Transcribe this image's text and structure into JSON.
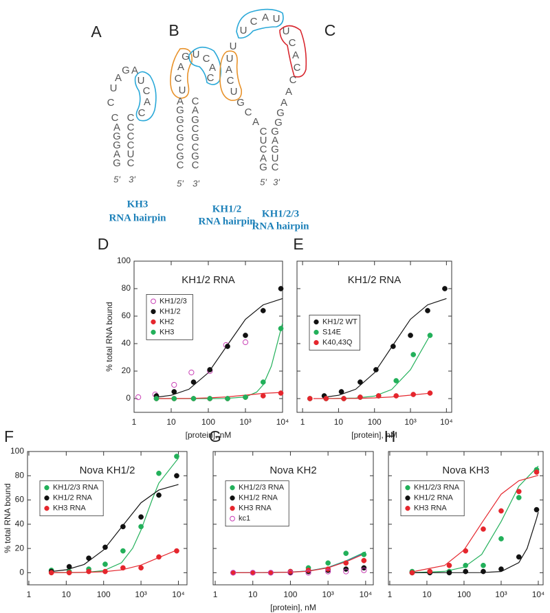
{
  "diagrams": [
    {
      "label": "A",
      "bases": [
        "G",
        "A",
        "G",
        "G",
        "A",
        "C",
        "C",
        "U",
        "A",
        "G",
        "A",
        "U",
        "C",
        "A",
        "C",
        "C",
        "C",
        "C",
        "C",
        "U",
        "C"
      ],
      "ends": [
        "5'",
        "3'"
      ],
      "caption": [
        "KH3",
        "RNA hairpin"
      ]
    },
    {
      "label": "B",
      "bases": [
        "C",
        "G",
        "C",
        "G",
        "C",
        "G",
        "G",
        "A",
        "U",
        "C",
        "A",
        "G",
        "U",
        "C",
        "A",
        "C",
        "C",
        "A",
        "G",
        "C",
        "G",
        "C",
        "G",
        "C"
      ],
      "ends": [
        "5'",
        "3'"
      ],
      "caption": [
        "KH1/2",
        "RNA hairpin"
      ]
    },
    {
      "label": "C",
      "bases": [
        "G",
        "A",
        "C",
        "U",
        "C",
        "A",
        "C",
        "G",
        "U",
        "C",
        "A",
        "U",
        "U",
        "U",
        "C",
        "A",
        "U",
        "U",
        "C",
        "A",
        "C",
        "C",
        "A",
        "A",
        "G",
        "G",
        "G",
        "A",
        "G",
        "U",
        "C"
      ],
      "ends": [
        "5'",
        "3'"
      ],
      "caption": [
        "KH1/2/3",
        "RNA hairpin"
      ]
    }
  ],
  "chart_data": [
    {
      "panel": "D",
      "type": "scatter",
      "title": "KH1/2 RNA",
      "ylabel": "% total RNA bound",
      "xlabel": "[protein], nM",
      "xscale": "log",
      "xlim": [
        1,
        10000
      ],
      "ylim": [
        -10,
        100
      ],
      "xticks": [
        1,
        10,
        100,
        {
          "value": 1000,
          "label": "10³"
        },
        {
          "value": 10000,
          "label": "10⁴"
        }
      ],
      "yticks": [
        0,
        20,
        40,
        60,
        80,
        100
      ],
      "ytick_labels": true,
      "legend": "upper left",
      "fits": [
        {
          "color": "#111111",
          "x": [
            4,
            10,
            30,
            100,
            300,
            1000,
            3000,
            10000
          ],
          "values": [
            1,
            2.4,
            6.8,
            18.8,
            37.5,
            57.7,
            68.2,
            72.8
          ]
        },
        {
          "color": "#22b05a",
          "x": [
            4,
            100,
            300,
            1000,
            2000,
            3000,
            5000,
            10000
          ],
          "values": [
            0,
            0,
            0.1,
            1.2,
            4.7,
            10,
            23.6,
            55
          ]
        },
        {
          "color": "#e5262d",
          "x": [
            4,
            30,
            100,
            300,
            1000,
            3000,
            10000
          ],
          "values": [
            0,
            0.1,
            0.5,
            1.2,
            2.5,
            3.8,
            4.5
          ]
        }
      ],
      "series": [
        {
          "name": "KH1/2/3",
          "color": "#c83cb4",
          "marker": "open",
          "x": [
            1.3,
            3.7,
            12,
            35,
            110,
            300,
            1000
          ],
          "values": [
            1,
            3,
            10,
            19,
            20,
            39,
            41
          ]
        },
        {
          "name": "KH1/2",
          "color": "#111111",
          "marker": "filled",
          "x": [
            4,
            12,
            40,
            110,
            330,
            1000,
            3000,
            9000
          ],
          "values": [
            2,
            5,
            12,
            21,
            38,
            46,
            64,
            80
          ]
        },
        {
          "name": "KH2",
          "color": "#e5262d",
          "marker": "filled",
          "x": [
            4,
            12,
            40,
            110,
            330,
            1000,
            3000,
            9000
          ],
          "values": [
            0,
            0,
            0,
            0,
            0,
            1,
            2,
            4
          ]
        },
        {
          "name": "KH3",
          "color": "#22b05a",
          "marker": "filled",
          "x": [
            4,
            12,
            40,
            110,
            330,
            1000,
            3000,
            9000
          ],
          "values": [
            0,
            0,
            0,
            0,
            0,
            1,
            12,
            51
          ]
        }
      ]
    },
    {
      "panel": "E",
      "type": "scatter",
      "title": "KH1/2 RNA",
      "xlabel": "[protein], nM",
      "xscale": "log",
      "xlim": [
        0.7,
        14000
      ],
      "ylim": [
        -10,
        100
      ],
      "xticks": [
        1,
        10,
        100,
        {
          "value": 1000,
          "label": "10³"
        },
        {
          "value": 10000,
          "label": "10⁴"
        }
      ],
      "yticks": [
        0,
        20,
        40,
        60,
        80,
        100
      ],
      "ytick_labels": false,
      "legend": "center left",
      "fits": [
        {
          "color": "#111111",
          "x": [
            4,
            10,
            30,
            100,
            300,
            1000,
            3000,
            10000
          ],
          "values": [
            1,
            2.4,
            6.8,
            18.8,
            37.5,
            57.7,
            68.2,
            72.8
          ]
        },
        {
          "color": "#22b05a",
          "x": [
            4,
            30,
            100,
            300,
            1000,
            3500
          ],
          "values": [
            0,
            0.4,
            1.8,
            6.6,
            21,
            46
          ]
        },
        {
          "color": "#e5262d",
          "x": [
            2,
            30,
            100,
            300,
            1000,
            3500
          ],
          "values": [
            0,
            0.1,
            0.5,
            1.2,
            2.5,
            3.9
          ]
        }
      ],
      "series": [
        {
          "name": "KH1/2 WT",
          "color": "#111111",
          "marker": "filled",
          "x": [
            4,
            12,
            40,
            110,
            330,
            1000,
            3000,
            9000
          ],
          "values": [
            2,
            5,
            12,
            21,
            38,
            46,
            64,
            80
          ]
        },
        {
          "name": "S14E",
          "color": "#22b05a",
          "marker": "filled",
          "x": [
            1.6,
            4.5,
            14,
            40,
            130,
            400,
            1200,
            3500
          ],
          "values": [
            0,
            0,
            0,
            1,
            2,
            13,
            32,
            46
          ]
        },
        {
          "name": "K40,43Q",
          "color": "#e5262d",
          "marker": "filled",
          "x": [
            1.6,
            4.5,
            14,
            40,
            130,
            400,
            1200,
            3500
          ],
          "values": [
            0,
            0,
            0,
            1,
            2,
            2,
            3,
            4
          ]
        }
      ]
    },
    {
      "panel": "F",
      "type": "scatter",
      "title": "Nova KH1/2",
      "ylabel": "% total RNA bound",
      "xscale": "log",
      "xlim": [
        0.92,
        17000
      ],
      "ylim": [
        -10,
        100
      ],
      "xticks": [
        1,
        10,
        100,
        {
          "value": 1000,
          "label": "10³"
        },
        {
          "value": 10000,
          "label": "10⁴"
        }
      ],
      "yticks": [
        0,
        20,
        40,
        60,
        80,
        100
      ],
      "ytick_labels": true,
      "legend": "upper left",
      "fits": [
        {
          "color": "#22b05a",
          "x": [
            4,
            30,
            100,
            300,
            600,
            1000,
            2000,
            3000,
            10000
          ],
          "values": [
            0,
            0.2,
            1.7,
            8.2,
            20.2,
            35.2,
            60.6,
            73.9,
            94.5
          ]
        },
        {
          "color": "#111111",
          "x": [
            4,
            10,
            30,
            100,
            300,
            1000,
            3000,
            10000
          ],
          "values": [
            1,
            2.4,
            6.8,
            18.8,
            37.5,
            57.7,
            68.2,
            72.8
          ]
        },
        {
          "color": "#e5262d",
          "x": [
            4,
            30,
            100,
            300,
            1000,
            3000,
            10000
          ],
          "values": [
            0,
            0.25,
            0.8,
            2.3,
            6.3,
            12.5,
            19.2
          ]
        }
      ],
      "series": [
        {
          "name": "KH1/2/3 RNA",
          "color": "#22b05a",
          "marker": "filled",
          "x": [
            4,
            12,
            40,
            110,
            330,
            1000,
            3000,
            9000
          ],
          "values": [
            2,
            1,
            3,
            7,
            18,
            38,
            82,
            96
          ]
        },
        {
          "name": "KH1/2 RNA",
          "color": "#111111",
          "marker": "filled",
          "x": [
            4,
            12,
            40,
            110,
            330,
            1000,
            3000,
            9000
          ],
          "values": [
            1,
            5,
            12,
            21,
            38,
            46,
            64,
            80
          ]
        },
        {
          "name": "KH3 RNA",
          "color": "#e5262d",
          "marker": "filled",
          "x": [
            4,
            12,
            40,
            110,
            330,
            1000,
            3000,
            9000
          ],
          "values": [
            0,
            0,
            1,
            1,
            4,
            4,
            13,
            18
          ]
        }
      ]
    },
    {
      "panel": "G",
      "type": "scatter",
      "title": "Nova KH2",
      "xlabel": "[protein], nM",
      "xscale": "log",
      "xlim": [
        0.88,
        16000
      ],
      "ylim": [
        -10,
        100
      ],
      "xticks": [
        1,
        10,
        100,
        {
          "value": 1000,
          "label": "10³"
        },
        {
          "value": 10000,
          "label": "10⁴"
        }
      ],
      "yticks": [
        0,
        20,
        40,
        60,
        80,
        100
      ],
      "ytick_labels": false,
      "legend": "upper left",
      "fits": [
        {
          "color": "#22b05a",
          "x": [
            3,
            30,
            100,
            300,
            1000,
            3000,
            10000
          ],
          "values": [
            0,
            0.2,
            0.5,
            1.5,
            4.4,
            9.8,
            17.3
          ]
        },
        {
          "color": "#2b8fd0",
          "x": [
            3,
            30,
            100,
            300,
            1000,
            3000,
            10000
          ],
          "values": [
            0,
            0.15,
            0.5,
            1.4,
            4.2,
            9.4,
            16.7
          ]
        },
        {
          "color": "#e5262d",
          "x": [
            3,
            30,
            100,
            300,
            1000,
            3000,
            10000
          ],
          "values": [
            0,
            0.15,
            0.45,
            1.3,
            4,
            9,
            16
          ]
        }
      ],
      "series": [
        {
          "name": "KH1/2/3 RNA",
          "color": "#22b05a",
          "marker": "filled",
          "x": [
            3,
            10,
            30,
            100,
            300,
            1000,
            3000,
            9000
          ],
          "values": [
            0,
            0,
            0,
            1,
            4,
            8,
            16,
            15
          ]
        },
        {
          "name": "KH1/2 RNA",
          "color": "#111111",
          "marker": "filled",
          "x": [
            3,
            10,
            30,
            100,
            300,
            1000,
            3000,
            9000
          ],
          "values": [
            0,
            0,
            0,
            0,
            1,
            2,
            3,
            4
          ]
        },
        {
          "name": "KH3 RNA",
          "color": "#e5262d",
          "marker": "filled",
          "x": [
            3,
            10,
            30,
            100,
            300,
            1000,
            3000,
            9000
          ],
          "values": [
            0,
            0,
            0,
            1,
            2,
            3,
            8,
            10
          ]
        },
        {
          "name": "kc1",
          "color": "#c83cb4",
          "marker": "open",
          "x": [
            3,
            10,
            30,
            100,
            300,
            1000,
            3000,
            9000
          ],
          "values": [
            0,
            0,
            0,
            0,
            0,
            1,
            1,
            2
          ]
        }
      ]
    },
    {
      "panel": "H",
      "type": "scatter",
      "title": "Nova KH3",
      "xscale": "log",
      "xlim": [
        0.92,
        13500
      ],
      "ylim": [
        -10,
        100
      ],
      "xticks": [
        1,
        10,
        100,
        {
          "value": 1000,
          "label": "10³"
        },
        {
          "value": 10000,
          "label": "10⁴"
        }
      ],
      "yticks": [
        0,
        20,
        40,
        60,
        80,
        100
      ],
      "ytick_labels": false,
      "legend": "upper left",
      "fits": [
        {
          "color": "#22b05a",
          "x": [
            4,
            30,
            100,
            300,
            1000,
            3000,
            10000
          ],
          "values": [
            0.1,
            1.1,
            4.6,
            15.1,
            42.3,
            71.3,
            88
          ]
        },
        {
          "color": "#e5262d",
          "x": [
            4,
            30,
            100,
            300,
            1000,
            3000,
            10000
          ],
          "values": [
            0.7,
            6,
            18.8,
            41,
            64.8,
            75.9,
            80.3
          ]
        },
        {
          "color": "#111111",
          "x": [
            4,
            300,
            1000,
            3000,
            5000,
            9000,
            10000
          ],
          "values": [
            0,
            0.1,
            1,
            8.3,
            20,
            44.8,
            50
          ]
        }
      ],
      "series": [
        {
          "name": "KH1/2/3 RNA",
          "color": "#22b05a",
          "marker": "filled",
          "x": [
            4,
            12,
            40,
            110,
            330,
            1000,
            3000,
            9000
          ],
          "values": [
            1,
            1,
            1,
            6,
            6,
            28,
            62,
            85
          ]
        },
        {
          "name": "KH1/2 RNA",
          "color": "#111111",
          "marker": "filled",
          "x": [
            4,
            12,
            40,
            110,
            330,
            1000,
            3000,
            9000
          ],
          "values": [
            0,
            0,
            0,
            1,
            1,
            3,
            13,
            52
          ]
        },
        {
          "name": "KH3 RNA",
          "color": "#e5262d",
          "marker": "filled",
          "x": [
            4,
            12,
            40,
            110,
            330,
            1000,
            3000,
            9000
          ],
          "values": [
            0,
            1,
            6,
            18,
            36,
            51,
            67,
            83
          ]
        }
      ]
    }
  ]
}
